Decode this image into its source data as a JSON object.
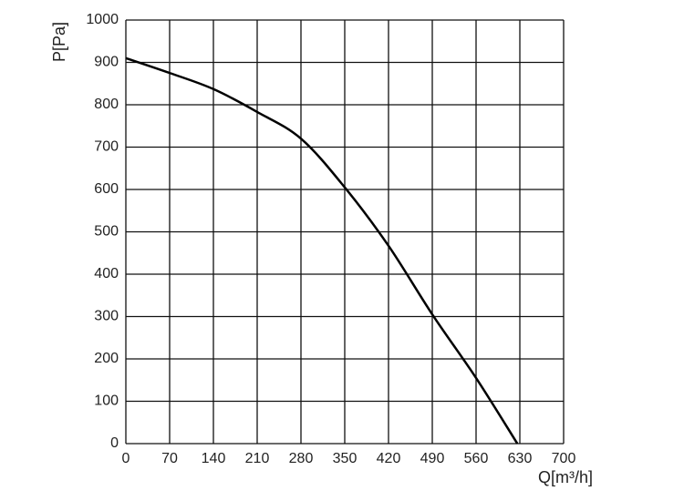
{
  "chart_data": {
    "type": "line",
    "x_label": "Q[m³/h]",
    "y_label": "P[Pa]",
    "x": [
      0,
      70,
      140,
      210,
      280,
      350,
      420,
      490,
      560,
      626
    ],
    "series": [
      {
        "color": "#000000",
        "values": [
          910,
          875,
          837,
          783,
          720,
          605,
          467,
          305,
          155,
          0
        ]
      }
    ],
    "xlim": [
      0,
      700
    ],
    "xticks": [
      0,
      70,
      140,
      210,
      280,
      350,
      420,
      490,
      560,
      630,
      700
    ],
    "ylim": [
      0,
      1000
    ],
    "yticks": [
      0,
      100,
      200,
      300,
      400,
      500,
      600,
      700,
      800,
      900,
      1000
    ],
    "grid": true
  }
}
